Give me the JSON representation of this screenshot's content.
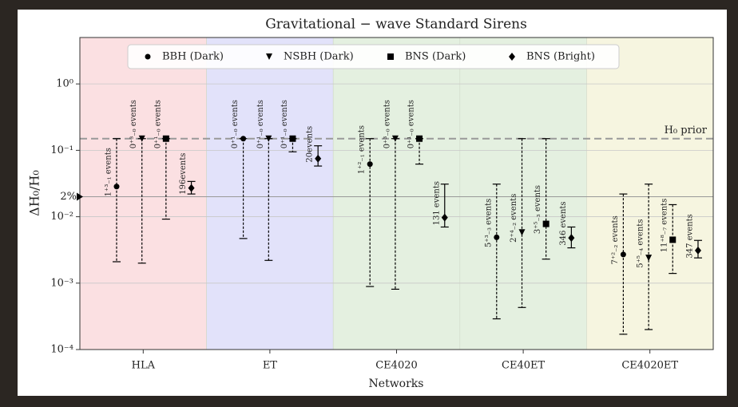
{
  "chart_data": {
    "type": "errorbar",
    "title": "Gravitational − wave Standard Sirens",
    "x_label": "Networks",
    "y_label": "ΔH₀/H₀",
    "log_y": true,
    "ylim": [
      0.0001,
      5
    ],
    "yticks": [
      {
        "value": 1,
        "label": "10⁰"
      },
      {
        "value": 0.1,
        "label": "10⁻¹"
      },
      {
        "value": 0.01,
        "label": "10⁻²"
      },
      {
        "value": 0.001,
        "label": "10⁻³"
      },
      {
        "value": 0.0001,
        "label": "10⁻⁴"
      }
    ],
    "grid": true,
    "categories": [
      "HLA",
      "ET",
      "CE4020",
      "CE40ET",
      "CE4020ET"
    ],
    "band_colors": [
      "#fbe0e2",
      "#e2e2fa",
      "#e4f0e0",
      "#e4f0e0",
      "#f6f5e0"
    ],
    "reference_lines": [
      {
        "value": 0.15,
        "label": "H₀ prior",
        "color": "#999999",
        "linestyle": "dashed"
      },
      {
        "value": 0.02,
        "label": "2%",
        "color": "#999999",
        "linestyle": "solid"
      }
    ],
    "series": [
      {
        "name": "BBH (Dark)",
        "marker": "circle",
        "color": "#000000",
        "linestyle": "dashed",
        "values": [
          0.0285,
          0.15,
          0.062,
          0.0049,
          0.0027
        ],
        "lower": [
          0.0021,
          0.0047,
          0.00089,
          0.00029,
          0.00017
        ],
        "upper": [
          0.15,
          0.15,
          0.15,
          0.031,
          0.022
        ],
        "labels": [
          "1⁺³₋₁ events",
          "0⁺¹₋₀ events",
          "1⁺²₋₁ events",
          "5⁺³₋₃ events",
          "7⁺²₋₂ events"
        ]
      },
      {
        "name": "NSBH (Dark)",
        "marker": "triangle",
        "color": "#000000",
        "linestyle": "dashed",
        "values": [
          0.15,
          0.15,
          0.15,
          0.0058,
          0.0024
        ],
        "lower": [
          0.002,
          0.0022,
          0.00081,
          0.00043,
          0.0002
        ],
        "upper": [
          0.15,
          0.15,
          0.15,
          0.15,
          0.031
        ],
        "labels": [
          "0⁺³₋₀ events",
          "0⁺¹₋₀ events",
          "0⁺³₋₀ events",
          "2⁺⁴₋₂ events",
          "5⁺⁵₋₄ events"
        ]
      },
      {
        "name": "BNS (Dark)",
        "marker": "square",
        "color": "#000000",
        "linestyle": "dashed",
        "values": [
          0.15,
          0.15,
          0.15,
          0.0078,
          0.0045
        ],
        "lower": [
          0.0092,
          0.095,
          0.062,
          0.0023,
          0.0014
        ],
        "upper": [
          0.15,
          0.15,
          0.15,
          0.15,
          0.0152
        ],
        "labels": [
          "0⁺¹₋₀ events",
          "0⁺¹₋₀ events",
          "0⁺¹₋₀ events",
          "3⁺⁵₋₃ events",
          "11⁺⁸₋₇ events"
        ]
      },
      {
        "name": "BNS (Bright)",
        "marker": "diamond",
        "color": "#000000",
        "linestyle": "solid",
        "values": [
          0.027,
          0.075,
          0.0097,
          0.0048,
          0.0031
        ],
        "lower": [
          0.022,
          0.058,
          0.007,
          0.0034,
          0.0024
        ],
        "upper": [
          0.034,
          0.117,
          0.031,
          0.007,
          0.0044
        ],
        "labels": [
          "196events",
          "20events",
          "131 events",
          "346 events",
          "347 events"
        ]
      }
    ]
  }
}
